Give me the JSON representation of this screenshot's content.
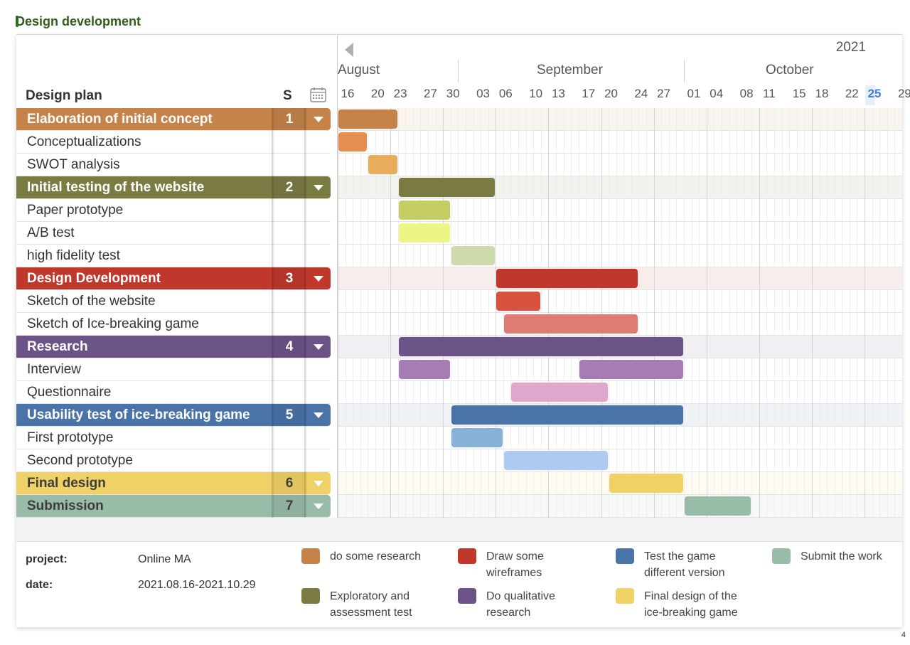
{
  "title": "Design development",
  "header": {
    "plan_label": "Design plan",
    "s_label": "S",
    "year": "2021",
    "months": [
      "August",
      "September",
      "October"
    ],
    "days": [
      "16",
      "20",
      "23",
      "27",
      "30",
      "03",
      "06",
      "10",
      "13",
      "17",
      "20",
      "24",
      "27",
      "01",
      "04",
      "08",
      "11",
      "15",
      "18",
      "22",
      "25",
      "29"
    ],
    "today": "25"
  },
  "rows": [
    {
      "type": "group",
      "name": "Elaboration of initial concept",
      "num": "1",
      "color": "#c5834a"
    },
    {
      "type": "sub",
      "name": "Conceptualizations"
    },
    {
      "type": "sub",
      "name": "SWOT analysis"
    },
    {
      "type": "group",
      "name": "Initial testing of the website",
      "num": "2",
      "color": "#7a7b43"
    },
    {
      "type": "sub",
      "name": "Paper prototype"
    },
    {
      "type": "sub",
      "name": "A/B test"
    },
    {
      "type": "sub",
      "name": "high fidelity test"
    },
    {
      "type": "group",
      "name": "Design Development",
      "num": "3",
      "color": "#c0382c"
    },
    {
      "type": "sub",
      "name": "Sketch of the website"
    },
    {
      "type": "sub",
      "name": "Sketch of Ice-breaking game"
    },
    {
      "type": "group",
      "name": "Research",
      "num": "4",
      "color": "#6c5387"
    },
    {
      "type": "sub",
      "name": "Interview"
    },
    {
      "type": "sub",
      "name": "Questionnaire"
    },
    {
      "type": "group",
      "name": "Usability test of ice-breaking game",
      "num": "5",
      "color": "#4a73a8"
    },
    {
      "type": "sub",
      "name": "First prototype"
    },
    {
      "type": "sub",
      "name": "Second prototype"
    },
    {
      "type": "group",
      "name": "Final design",
      "num": "6",
      "color": "#f0d166",
      "dark": true
    },
    {
      "type": "group",
      "name": "Submission",
      "num": "7",
      "color": "#98bca8",
      "dark": true
    }
  ],
  "bars": [
    {
      "row": 0,
      "start": "2021-08-16",
      "end": "2021-08-23",
      "color": "#c5834a"
    },
    {
      "row": 1,
      "start": "2021-08-16",
      "end": "2021-08-19",
      "color": "#e48e4f"
    },
    {
      "row": 2,
      "start": "2021-08-20",
      "end": "2021-08-23",
      "color": "#e8ad5c"
    },
    {
      "row": 3,
      "start": "2021-08-24",
      "end": "2021-09-05",
      "color": "#7a7b43"
    },
    {
      "row": 4,
      "start": "2021-08-24",
      "end": "2021-08-30",
      "color": "#c4cc62"
    },
    {
      "row": 5,
      "start": "2021-08-24",
      "end": "2021-08-30",
      "color": "#eef587"
    },
    {
      "row": 6,
      "start": "2021-08-31",
      "end": "2021-09-05",
      "color": "#cddbac"
    },
    {
      "row": 7,
      "start": "2021-09-06",
      "end": "2021-09-24",
      "color": "#c0382c"
    },
    {
      "row": 8,
      "start": "2021-09-06",
      "end": "2021-09-11",
      "color": "#d9513f"
    },
    {
      "row": 9,
      "start": "2021-09-07",
      "end": "2021-09-24",
      "color": "#de7b73"
    },
    {
      "row": 10,
      "start": "2021-08-24",
      "end": "2021-09-30",
      "color": "#6c5387"
    },
    {
      "row": 11,
      "start": "2021-08-24",
      "end": "2021-08-30",
      "color": "#a57cb3"
    },
    {
      "row": 11,
      "start": "2021-09-17",
      "end": "2021-09-30",
      "color": "#a57cb3"
    },
    {
      "row": 12,
      "start": "2021-09-08",
      "end": "2021-09-20",
      "color": "#e0a7cc"
    },
    {
      "row": 13,
      "start": "2021-08-31",
      "end": "2021-09-30",
      "color": "#4a73a8"
    },
    {
      "row": 14,
      "start": "2021-08-31",
      "end": "2021-09-06",
      "color": "#87b2d6"
    },
    {
      "row": 15,
      "start": "2021-09-07",
      "end": "2021-09-20",
      "color": "#b0c9f1"
    },
    {
      "row": 16,
      "start": "2021-09-21",
      "end": "2021-09-30",
      "color": "#f0d166"
    },
    {
      "row": 17,
      "start": "2021-10-01",
      "end": "2021-10-09",
      "color": "#98bca8"
    }
  ],
  "meta": {
    "project_label": "project:",
    "project_value": "Online MA",
    "date_label": "date:",
    "date_value": "2021.08.16-2021.10.29"
  },
  "legend": [
    {
      "label": "do some research",
      "color": "#c5834a"
    },
    {
      "label": "Exploratory and assessment test",
      "color": "#7a7b43"
    },
    {
      "label": "Draw some wireframes",
      "color": "#c0382c"
    },
    {
      "label": "Do qualitative research",
      "color": "#6c5387"
    },
    {
      "label": "Test the game different version",
      "color": "#4a73a8"
    },
    {
      "label": "Final design of the ice-breaking game",
      "color": "#f0d166"
    },
    {
      "label": "Submit the work",
      "color": "#98bca8"
    }
  ],
  "page_number": "4"
}
